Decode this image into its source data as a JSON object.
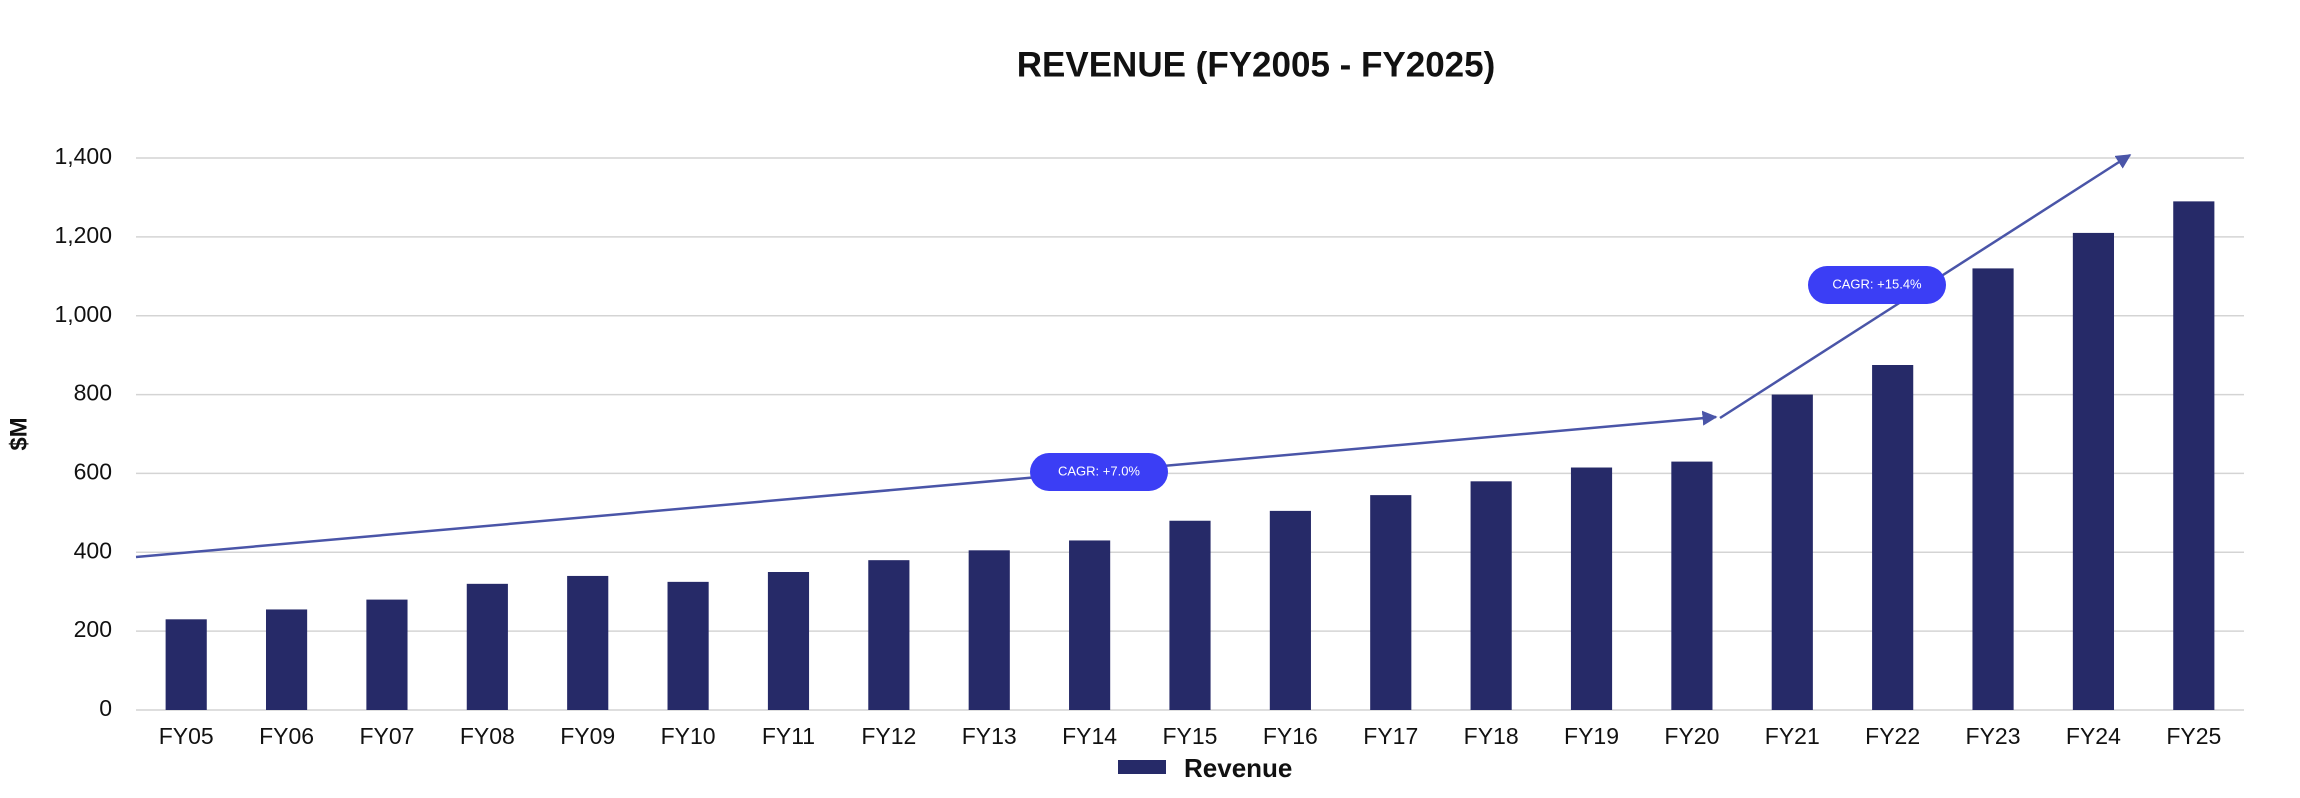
{
  "chart_data": {
    "type": "bar",
    "title": "REVENUE (FY2005 - FY2025)",
    "y_label": "$M",
    "categories": [
      "FY05",
      "FY06",
      "FY07",
      "FY08",
      "FY09",
      "FY10",
      "FY11",
      "FY12",
      "FY13",
      "FY14",
      "FY15",
      "FY16",
      "FY17",
      "FY18",
      "FY19",
      "FY20",
      "FY21",
      "FY22",
      "FY23",
      "FY24",
      "FY25"
    ],
    "series": [
      {
        "name": "Revenue",
        "color": "#262a68",
        "values": [
          230,
          255,
          280,
          320,
          340,
          325,
          350,
          380,
          405,
          430,
          480,
          505,
          545,
          580,
          615,
          630,
          800,
          875,
          1120,
          1210,
          1290
        ]
      }
    ],
    "ylim": [
      0,
      1400
    ],
    "yticks": [
      0,
      {
        "value": 200,
        "label": "200"
      },
      400,
      600,
      800,
      {
        "value": 1000,
        "label": "1,000"
      },
      {
        "value": 1200,
        "label": "1,200"
      },
      {
        "value": 1400,
        "label": "1,400"
      }
    ],
    "grid": true,
    "legend": "bottom",
    "annotations": [
      "CAGR: +7.0%",
      "CAGR: +15.4%"
    ]
  }
}
